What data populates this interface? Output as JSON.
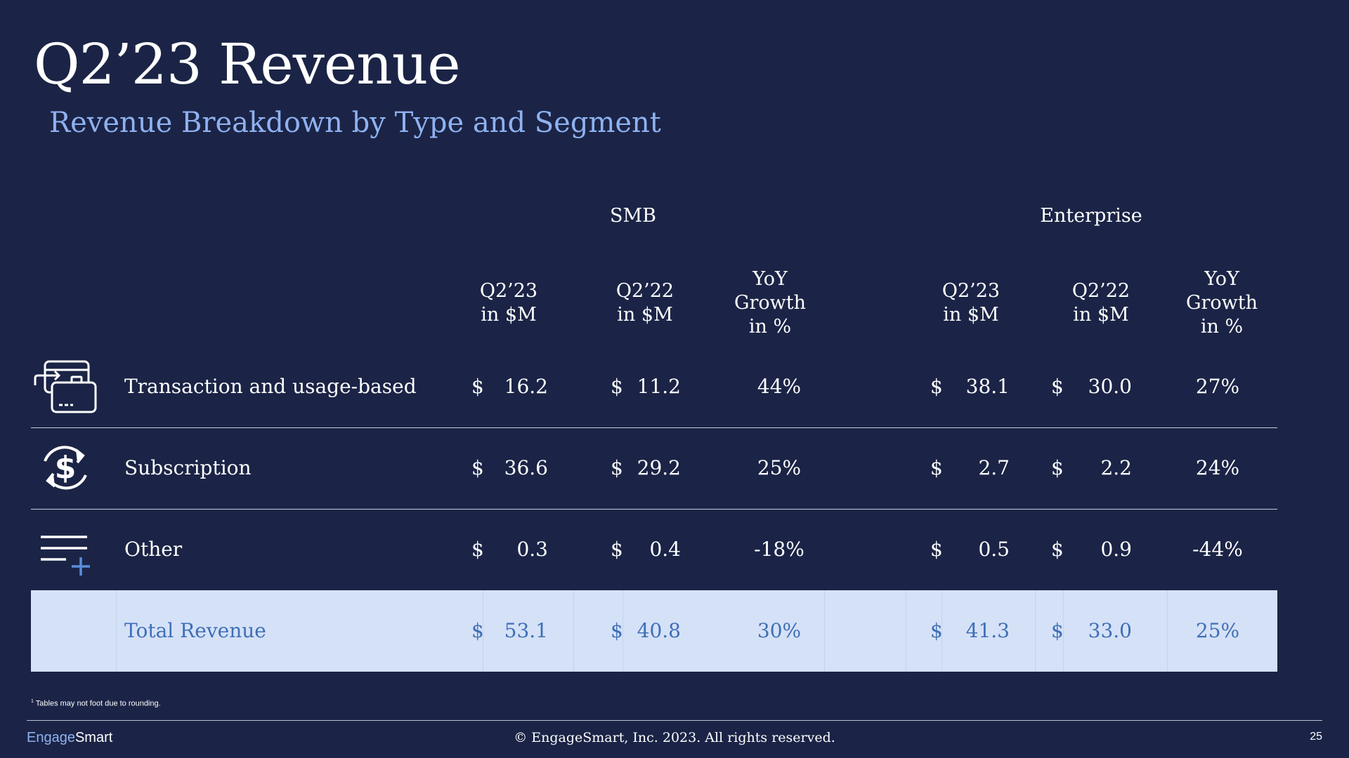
{
  "title": "Q2’23 Revenue",
  "subtitle": "Revenue Breakdown by Type and Segment",
  "segments": {
    "smb": "SMB",
    "enterprise": "Enterprise"
  },
  "headers": {
    "q223": [
      "Q2’23",
      "in $M"
    ],
    "q222": [
      "Q2’22",
      "in $M"
    ],
    "yoy": [
      "YoY",
      "Growth",
      "in %"
    ]
  },
  "rows": [
    {
      "icon": "credit-card-transfer-icon",
      "label": "Transaction and usage-based",
      "smb_q223": "16.2",
      "smb_q222": "11.2",
      "smb_yoy": "44%",
      "ent_q223": "38.1",
      "ent_q222": "30.0",
      "ent_yoy": "27%"
    },
    {
      "icon": "recurring-dollar-icon",
      "label": "Subscription",
      "smb_q223": "36.6",
      "smb_q222": "29.2",
      "smb_yoy": "25%",
      "ent_q223": "2.7",
      "ent_q222": "2.2",
      "ent_yoy": "24%"
    },
    {
      "icon": "list-add-icon",
      "label": "Other",
      "smb_q223": "0.3",
      "smb_q222": "0.4",
      "smb_yoy": "-18%",
      "ent_q223": "0.5",
      "ent_q222": "0.9",
      "ent_yoy": "-44%"
    },
    {
      "icon": "",
      "label": "Total Revenue",
      "smb_q223": "53.1",
      "smb_q222": "40.8",
      "smb_yoy": "30%",
      "ent_q223": "41.3",
      "ent_q222": "33.0",
      "ent_yoy": "25%"
    }
  ],
  "currency": "$",
  "footnote_mark": "1",
  "footnote": "Tables may not foot due to rounding.",
  "logo": {
    "part1": "Engage",
    "part2": "Smart"
  },
  "copyright": "© EngageSmart, Inc. 2023. All rights reserved.",
  "page_number": "25",
  "colors": {
    "background": "#1b2446",
    "accent": "#8fb1f0",
    "total_row_bg": "#d5e1f7",
    "total_text": "#3f6fb6"
  }
}
